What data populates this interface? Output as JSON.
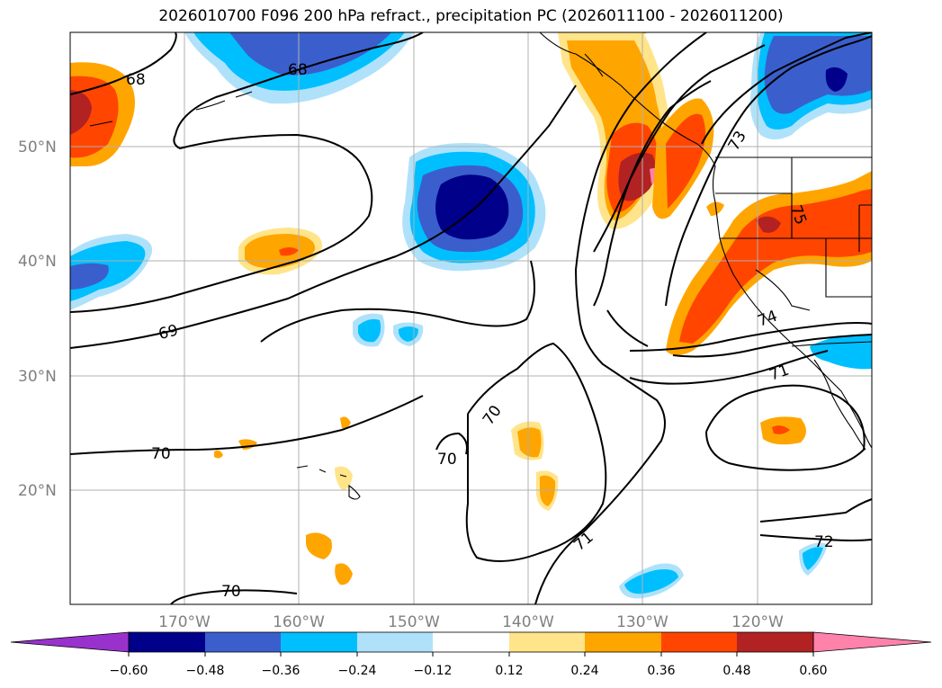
{
  "title": "2026010700 F096 200 hPa refract., precipitation PC (2026011100 - 2026011200)",
  "map": {
    "lat_ticks": [
      "20°N",
      "30°N",
      "40°N",
      "50°N"
    ],
    "lon_ticks": [
      "170°W",
      "160°W",
      "150°W",
      "140°W",
      "130°W",
      "120°W"
    ],
    "contour_labels": [
      "68",
      "68",
      "69",
      "70",
      "70",
      "70",
      "70",
      "71",
      "71",
      "72",
      "73",
      "74",
      "75"
    ]
  },
  "colorbar": {
    "ticks": [
      "−0.60",
      "−0.48",
      "−0.36",
      "−0.24",
      "−0.12",
      "0.12",
      "0.24",
      "0.36",
      "0.48",
      "0.60"
    ],
    "colors": [
      "#9932cc",
      "#00008b",
      "#3a5fcd",
      "#00bfff",
      "#afe2fa",
      "#ffffff",
      "#ffe48a",
      "#ffa500",
      "#ff4500",
      "#b22222",
      "#ff82ab"
    ]
  },
  "chart_data": {
    "type": "contour-map",
    "title": "2026010700 F096 200 hPa refract., precipitation PC (2026011100 - 2026011200)",
    "lat_range": [
      10,
      60
    ],
    "lon_range": [
      -180,
      -110
    ],
    "lat_ticks": [
      20,
      30,
      40,
      50
    ],
    "lon_ticks": [
      -170,
      -160,
      -150,
      -140,
      -130,
      -120
    ],
    "contour_field": "200 hPa refractivity",
    "contour_levels": [
      68,
      69,
      70,
      71,
      72,
      73,
      74,
      75
    ],
    "shaded_field": "precipitation PC",
    "colorbar_levels": [
      -0.6,
      -0.48,
      -0.36,
      -0.24,
      -0.12,
      0.12,
      0.24,
      0.36,
      0.48,
      0.6
    ],
    "extend": "both",
    "grid": true
  }
}
